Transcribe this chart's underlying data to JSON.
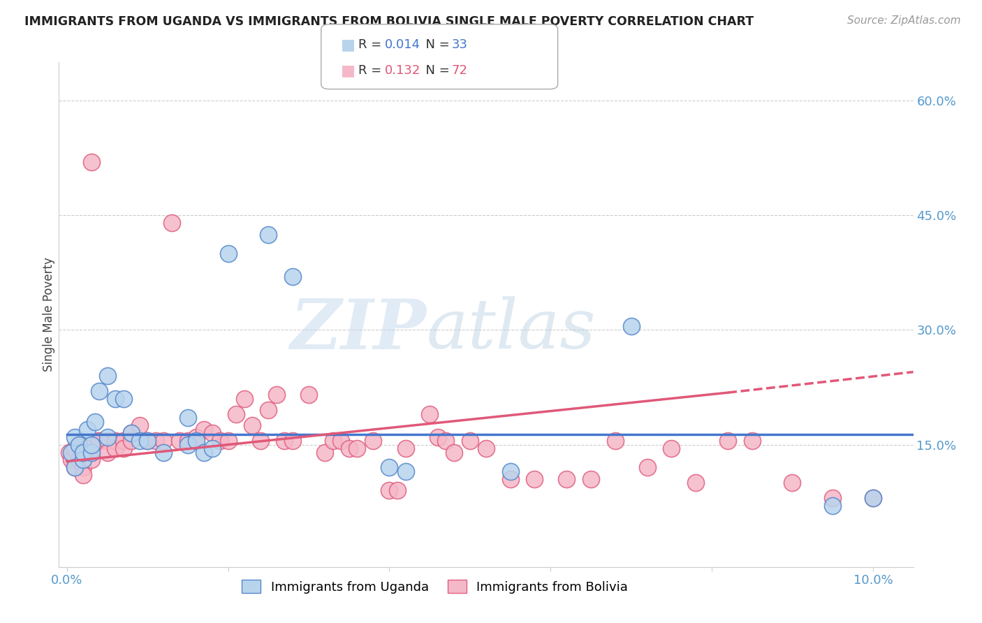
{
  "title": "IMMIGRANTS FROM UGANDA VS IMMIGRANTS FROM BOLIVIA SINGLE MALE POVERTY CORRELATION CHART",
  "source": "Source: ZipAtlas.com",
  "ylabel_left": "Single Male Poverty",
  "xlim": [
    -0.001,
    0.105
  ],
  "ylim": [
    -0.01,
    0.65
  ],
  "right_yticks": [
    0.15,
    0.3,
    0.45,
    0.6
  ],
  "right_ytick_labels": [
    "15.0%",
    "30.0%",
    "45.0%",
    "60.0%"
  ],
  "grid_color": "#cccccc",
  "background_color": "#ffffff",
  "uganda_color": "#b8d4ed",
  "bolivia_color": "#f5b8c8",
  "uganda_edge": "#5588cc",
  "bolivia_edge": "#e06080",
  "uganda_line_color": "#4477cc",
  "bolivia_line_color": "#e05878",
  "uganda_R": 0.014,
  "uganda_N": 33,
  "bolivia_R": 0.132,
  "bolivia_N": 72,
  "watermark": "ZIPatlas",
  "legend_label_uganda": "Immigrants from Uganda",
  "legend_label_bolivia": "Immigrants from Bolivia",
  "uganda_scatter_x": [
    0.0005,
    0.001,
    0.001,
    0.0015,
    0.002,
    0.002,
    0.0025,
    0.003,
    0.003,
    0.0035,
    0.004,
    0.005,
    0.005,
    0.006,
    0.007,
    0.008,
    0.009,
    0.01,
    0.012,
    0.015,
    0.015,
    0.016,
    0.017,
    0.018,
    0.02,
    0.025,
    0.028,
    0.04,
    0.042,
    0.055,
    0.07,
    0.095,
    0.1
  ],
  "uganda_scatter_y": [
    0.14,
    0.16,
    0.12,
    0.15,
    0.13,
    0.14,
    0.17,
    0.14,
    0.15,
    0.18,
    0.22,
    0.24,
    0.16,
    0.21,
    0.21,
    0.165,
    0.155,
    0.155,
    0.14,
    0.15,
    0.185,
    0.155,
    0.14,
    0.145,
    0.4,
    0.425,
    0.37,
    0.12,
    0.115,
    0.115,
    0.305,
    0.07,
    0.08
  ],
  "bolivia_scatter_x": [
    0.0003,
    0.0005,
    0.001,
    0.001,
    0.0015,
    0.0015,
    0.002,
    0.002,
    0.002,
    0.0025,
    0.003,
    0.003,
    0.003,
    0.004,
    0.004,
    0.005,
    0.005,
    0.006,
    0.006,
    0.007,
    0.007,
    0.008,
    0.008,
    0.009,
    0.01,
    0.011,
    0.012,
    0.013,
    0.014,
    0.015,
    0.016,
    0.017,
    0.018,
    0.019,
    0.02,
    0.021,
    0.022,
    0.023,
    0.024,
    0.025,
    0.026,
    0.027,
    0.028,
    0.03,
    0.032,
    0.033,
    0.034,
    0.035,
    0.036,
    0.038,
    0.04,
    0.041,
    0.042,
    0.045,
    0.046,
    0.047,
    0.048,
    0.05,
    0.052,
    0.055,
    0.058,
    0.062,
    0.065,
    0.068,
    0.072,
    0.075,
    0.078,
    0.082,
    0.085,
    0.09,
    0.095,
    0.1
  ],
  "bolivia_scatter_y": [
    0.14,
    0.13,
    0.145,
    0.12,
    0.15,
    0.13,
    0.14,
    0.12,
    0.11,
    0.145,
    0.14,
    0.13,
    0.52,
    0.155,
    0.155,
    0.155,
    0.14,
    0.155,
    0.145,
    0.155,
    0.145,
    0.165,
    0.155,
    0.175,
    0.155,
    0.155,
    0.155,
    0.44,
    0.155,
    0.155,
    0.16,
    0.17,
    0.165,
    0.155,
    0.155,
    0.19,
    0.21,
    0.175,
    0.155,
    0.195,
    0.215,
    0.155,
    0.155,
    0.215,
    0.14,
    0.155,
    0.155,
    0.145,
    0.145,
    0.155,
    0.09,
    0.09,
    0.145,
    0.19,
    0.16,
    0.155,
    0.14,
    0.155,
    0.145,
    0.105,
    0.105,
    0.105,
    0.105,
    0.155,
    0.12,
    0.145,
    0.1,
    0.155,
    0.155,
    0.1,
    0.08,
    0.08
  ],
  "uganda_line_x0": 0.0,
  "uganda_line_x1": 0.105,
  "uganda_line_y0": 0.163,
  "uganda_line_y1": 0.163,
  "bolivia_line_x0": 0.0,
  "bolivia_line_x1": 0.082,
  "bolivia_line_x2": 0.105,
  "bolivia_line_y0": 0.128,
  "bolivia_line_y1": 0.218,
  "bolivia_line_y2": 0.245
}
